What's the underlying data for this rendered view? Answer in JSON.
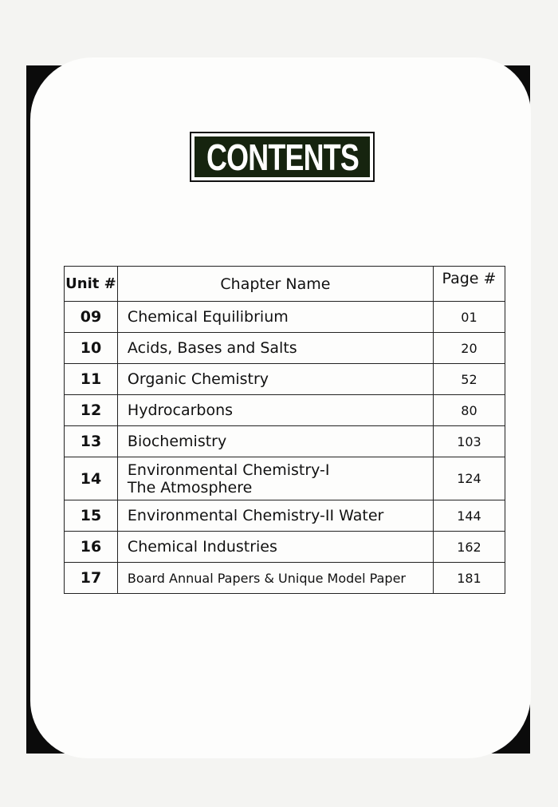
{
  "title": "CONTENTS",
  "table": {
    "headers": [
      "Unit #",
      "Chapter Name",
      "Page #"
    ],
    "rows": [
      {
        "unit": "09",
        "chapter": "Chemical Equilibrium",
        "chapter_line2": "",
        "page": "01"
      },
      {
        "unit": "10",
        "chapter": "Acids, Bases and Salts",
        "chapter_line2": "",
        "page": "20"
      },
      {
        "unit": "11",
        "chapter": "Organic Chemistry",
        "chapter_line2": "",
        "page": "52"
      },
      {
        "unit": "12",
        "chapter": "Hydrocarbons",
        "chapter_line2": "",
        "page": "80"
      },
      {
        "unit": "13",
        "chapter": "Biochemistry",
        "chapter_line2": "",
        "page": "103"
      },
      {
        "unit": "14",
        "chapter": "Environmental Chemistry-I",
        "chapter_line2": "The Atmosphere",
        "page": "124"
      },
      {
        "unit": "15",
        "chapter": "Environmental Chemistry-II Water",
        "chapter_line2": "",
        "page": "144"
      },
      {
        "unit": "16",
        "chapter": "Chemical Industries",
        "chapter_line2": "",
        "page": "162"
      },
      {
        "unit": "17",
        "chapter": "Board Annual Papers & Unique Model Paper",
        "chapter_line2": "",
        "page": "181"
      }
    ]
  }
}
